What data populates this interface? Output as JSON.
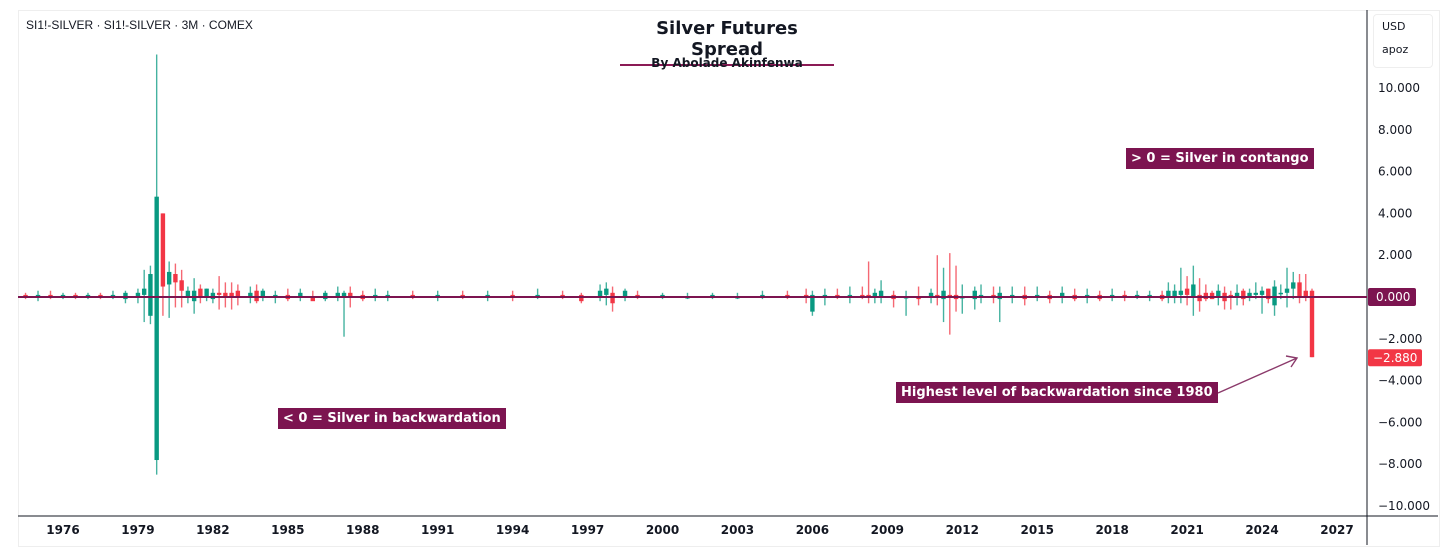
{
  "header": {
    "symbol_line": "SI1!-SILVER · SI1!-SILVER · 3M · COMEX",
    "title": "Silver Futures Spread",
    "subtitle": "By Abolade Akinfenwa"
  },
  "scale_box": {
    "currency": "USD",
    "unit": "apoz"
  },
  "annotations": {
    "contango": "> 0 = Silver in contango",
    "backwardation": "< 0 = Silver in backwardation",
    "highest": "Highest level of backwardation since 1980"
  },
  "colors": {
    "up": "#089981",
    "down": "#f23645",
    "accent": "#7c1450",
    "zero_line": "#7c1450"
  },
  "chart_data": {
    "type": "candlestick",
    "ylim": [
      -10.5,
      12
    ],
    "xlim": [
      1974.2,
      2028.2
    ],
    "x_ticks": [
      "1976",
      "1979",
      "1982",
      "1985",
      "1988",
      "1991",
      "1994",
      "1997",
      "2000",
      "2003",
      "2006",
      "2009",
      "2012",
      "2015",
      "2018",
      "2021",
      "2024",
      "2027"
    ],
    "y_ticks": [
      "10.000",
      "8.000",
      "6.000",
      "4.000",
      "2.000",
      "0.000",
      "−2.000",
      "−4.000",
      "−6.000",
      "−8.000",
      "−10.000"
    ],
    "y_tick_values": [
      10,
      8,
      6,
      4,
      2,
      0,
      -2,
      -4,
      -6,
      -8,
      -10
    ],
    "zero_label": "0.000",
    "last_value_label": "−2.880",
    "last_value": -2.88,
    "grid": false,
    "candles_ohlc": [
      [
        1974.5,
        0.1,
        0.2,
        -0.1,
        0.0
      ],
      [
        1975.0,
        0.0,
        0.3,
        -0.2,
        0.1
      ],
      [
        1975.5,
        0.1,
        0.3,
        -0.1,
        0.0
      ],
      [
        1976.0,
        0.0,
        0.2,
        -0.1,
        0.1
      ],
      [
        1976.5,
        0.1,
        0.2,
        -0.1,
        0.0
      ],
      [
        1977.0,
        0.0,
        0.2,
        -0.1,
        0.1
      ],
      [
        1977.5,
        0.1,
        0.2,
        -0.1,
        0.0
      ],
      [
        1978.0,
        0.0,
        0.3,
        -0.1,
        0.1
      ],
      [
        1978.5,
        -0.1,
        0.3,
        -0.3,
        0.2
      ],
      [
        1979.0,
        0.0,
        0.4,
        -0.3,
        0.2
      ],
      [
        1979.25,
        0.1,
        1.3,
        -1.2,
        0.4
      ],
      [
        1979.5,
        -0.9,
        1.5,
        -1.3,
        1.1
      ],
      [
        1979.75,
        -7.8,
        11.6,
        -8.5,
        4.8
      ],
      [
        1980.0,
        4.0,
        4.0,
        -0.9,
        0.5
      ],
      [
        1980.25,
        0.6,
        1.7,
        -1.0,
        1.2
      ],
      [
        1980.5,
        1.1,
        1.6,
        -0.5,
        0.7
      ],
      [
        1980.75,
        0.8,
        1.3,
        -0.5,
        0.3
      ],
      [
        1981.0,
        0.0,
        0.5,
        -0.3,
        0.3
      ],
      [
        1981.25,
        -0.2,
        0.9,
        -0.8,
        0.3
      ],
      [
        1981.5,
        0.4,
        0.6,
        -0.3,
        0.0
      ],
      [
        1981.75,
        0.0,
        0.4,
        -0.2,
        0.4
      ],
      [
        1982.0,
        -0.1,
        0.4,
        -0.3,
        0.2
      ],
      [
        1982.25,
        0.2,
        1.0,
        -0.6,
        0.1
      ],
      [
        1982.5,
        0.2,
        0.7,
        -0.5,
        0.0
      ],
      [
        1982.75,
        0.2,
        0.7,
        -0.6,
        0.0
      ],
      [
        1983.0,
        0.3,
        0.6,
        -0.4,
        0.0
      ],
      [
        1983.5,
        0.0,
        0.5,
        -0.3,
        0.2
      ],
      [
        1983.75,
        0.3,
        0.6,
        -0.3,
        -0.2
      ],
      [
        1984.0,
        0.0,
        0.4,
        -0.2,
        0.3
      ],
      [
        1984.5,
        0.0,
        0.3,
        -0.3,
        0.1
      ],
      [
        1985.0,
        0.1,
        0.4,
        -0.2,
        -0.1
      ],
      [
        1985.5,
        0.0,
        0.4,
        -0.2,
        0.2
      ],
      [
        1986.0,
        0.0,
        0.3,
        -0.1,
        -0.2
      ],
      [
        1986.5,
        -0.1,
        0.3,
        -0.2,
        0.2
      ],
      [
        1987.0,
        0.0,
        0.5,
        -0.2,
        0.2
      ],
      [
        1987.25,
        0.0,
        0.3,
        -1.9,
        0.2
      ],
      [
        1987.5,
        0.2,
        0.5,
        -0.5,
        0.0
      ],
      [
        1988.0,
        0.1,
        0.3,
        -0.2,
        -0.1
      ],
      [
        1988.5,
        0.0,
        0.4,
        -0.2,
        0.1
      ],
      [
        1989.0,
        0.0,
        0.3,
        -0.2,
        0.1
      ],
      [
        1990.0,
        0.1,
        0.3,
        -0.1,
        0.0
      ],
      [
        1991.0,
        0.0,
        0.3,
        -0.2,
        0.1
      ],
      [
        1992.0,
        0.1,
        0.3,
        -0.1,
        0.0
      ],
      [
        1993.0,
        0.0,
        0.3,
        -0.2,
        0.1
      ],
      [
        1994.0,
        0.1,
        0.3,
        -0.2,
        0.0
      ],
      [
        1995.0,
        0.0,
        0.4,
        -0.1,
        0.1
      ],
      [
        1996.0,
        0.1,
        0.3,
        -0.1,
        0.0
      ],
      [
        1996.75,
        0.1,
        0.2,
        -0.3,
        -0.2
      ],
      [
        1997.5,
        0.0,
        0.6,
        -0.2,
        0.3
      ],
      [
        1997.75,
        0.1,
        0.7,
        -0.4,
        0.4
      ],
      [
        1998.0,
        0.2,
        0.5,
        -0.7,
        -0.3
      ],
      [
        1998.5,
        0.0,
        0.4,
        -0.2,
        0.3
      ],
      [
        1999.0,
        0.1,
        0.3,
        -0.1,
        0.0
      ],
      [
        2000.0,
        0.0,
        0.2,
        -0.1,
        0.1
      ],
      [
        2001.0,
        0.0,
        0.2,
        -0.1,
        0.0
      ],
      [
        2002.0,
        0.0,
        0.2,
        -0.1,
        0.1
      ],
      [
        2003.0,
        0.0,
        0.2,
        -0.1,
        0.0
      ],
      [
        2004.0,
        0.0,
        0.3,
        -0.1,
        0.1
      ],
      [
        2005.0,
        0.1,
        0.3,
        -0.1,
        0.0
      ],
      [
        2005.75,
        0.1,
        0.4,
        -0.3,
        0.0
      ],
      [
        2006.0,
        -0.7,
        0.3,
        -0.9,
        0.1
      ],
      [
        2006.5,
        0.0,
        0.4,
        -0.4,
        0.1
      ],
      [
        2007.0,
        0.1,
        0.4,
        -0.1,
        0.0
      ],
      [
        2007.5,
        0.0,
        0.5,
        -0.3,
        0.1
      ],
      [
        2008.0,
        0.1,
        0.5,
        -0.1,
        0.0
      ],
      [
        2008.25,
        0.1,
        1.7,
        -0.3,
        0.0
      ],
      [
        2008.5,
        0.0,
        0.4,
        -0.3,
        0.2
      ],
      [
        2008.75,
        0.0,
        0.8,
        -0.3,
        0.3
      ],
      [
        2009.25,
        0.1,
        0.3,
        -0.5,
        -0.1
      ],
      [
        2009.75,
        0.0,
        0.3,
        -0.9,
        0.0
      ],
      [
        2010.25,
        0.0,
        0.5,
        -0.4,
        -0.1
      ],
      [
        2010.75,
        0.0,
        0.4,
        -0.3,
        0.2
      ],
      [
        2011.0,
        0.1,
        2.0,
        -0.4,
        0.0
      ],
      [
        2011.25,
        -0.1,
        1.4,
        -1.2,
        0.3
      ],
      [
        2011.5,
        0.1,
        2.1,
        -1.8,
        0.0
      ],
      [
        2011.75,
        0.1,
        1.5,
        -0.7,
        -0.1
      ],
      [
        2012.0,
        0.0,
        0.6,
        -0.8,
        0.0
      ],
      [
        2012.5,
        -0.1,
        0.5,
        -0.6,
        0.3
      ],
      [
        2012.75,
        0.1,
        0.6,
        -0.3,
        0.1
      ],
      [
        2013.25,
        0.1,
        0.5,
        -0.3,
        0.0
      ],
      [
        2013.5,
        -0.1,
        0.5,
        -1.2,
        0.2
      ],
      [
        2014.0,
        0.0,
        0.5,
        -0.3,
        0.1
      ],
      [
        2014.5,
        0.1,
        0.5,
        -0.4,
        -0.1
      ],
      [
        2015.0,
        0.0,
        0.5,
        -0.2,
        0.1
      ],
      [
        2015.5,
        0.1,
        0.3,
        -0.3,
        -0.1
      ],
      [
        2016.0,
        0.0,
        0.5,
        -0.3,
        0.2
      ],
      [
        2016.5,
        0.1,
        0.4,
        -0.2,
        -0.1
      ],
      [
        2017.0,
        0.0,
        0.4,
        -0.3,
        0.1
      ],
      [
        2017.5,
        0.1,
        0.3,
        -0.2,
        -0.1
      ],
      [
        2018.0,
        0.0,
        0.4,
        -0.2,
        0.1
      ],
      [
        2018.5,
        0.1,
        0.3,
        -0.2,
        0.0
      ],
      [
        2019.0,
        0.0,
        0.3,
        -0.1,
        0.1
      ],
      [
        2019.5,
        0.0,
        0.3,
        -0.2,
        0.1
      ],
      [
        2020.0,
        0.1,
        0.3,
        -0.2,
        -0.1
      ],
      [
        2020.25,
        0.0,
        0.7,
        -0.3,
        0.3
      ],
      [
        2020.5,
        0.0,
        0.6,
        -0.3,
        0.3
      ],
      [
        2020.75,
        0.1,
        1.4,
        -0.3,
        0.3
      ],
      [
        2021.0,
        0.4,
        1.0,
        -0.4,
        0.1
      ],
      [
        2021.25,
        0.0,
        1.5,
        -0.9,
        0.6
      ],
      [
        2021.5,
        0.1,
        0.9,
        -0.7,
        -0.2
      ],
      [
        2021.75,
        0.2,
        0.6,
        -0.2,
        -0.1
      ],
      [
        2022.0,
        0.2,
        0.3,
        -0.1,
        -0.1
      ],
      [
        2022.25,
        0.0,
        0.6,
        -0.4,
        0.3
      ],
      [
        2022.5,
        0.2,
        0.5,
        -0.6,
        -0.2
      ],
      [
        2022.75,
        0.1,
        0.3,
        -0.6,
        0.0
      ],
      [
        2023.0,
        0.0,
        0.6,
        -0.4,
        0.2
      ],
      [
        2023.25,
        0.3,
        0.4,
        -0.4,
        -0.1
      ],
      [
        2023.5,
        0.0,
        0.4,
        -0.2,
        0.2
      ],
      [
        2023.75,
        0.1,
        0.7,
        -0.1,
        0.2
      ],
      [
        2024.0,
        0.1,
        0.5,
        -0.8,
        0.3
      ],
      [
        2024.25,
        0.4,
        0.4,
        -0.3,
        -0.1
      ],
      [
        2024.5,
        -0.4,
        0.8,
        -0.9,
        0.5
      ],
      [
        2024.75,
        0.2,
        0.6,
        -0.1,
        0.2
      ],
      [
        2025.0,
        0.2,
        1.4,
        -0.5,
        0.4
      ],
      [
        2025.25,
        0.4,
        1.2,
        -0.1,
        0.7
      ],
      [
        2025.5,
        0.7,
        1.1,
        -0.3,
        0.0
      ],
      [
        2025.75,
        0.3,
        1.1,
        -0.2,
        0.0
      ],
      [
        2026.0,
        0.3,
        0.4,
        -2.88,
        -2.88
      ]
    ]
  }
}
